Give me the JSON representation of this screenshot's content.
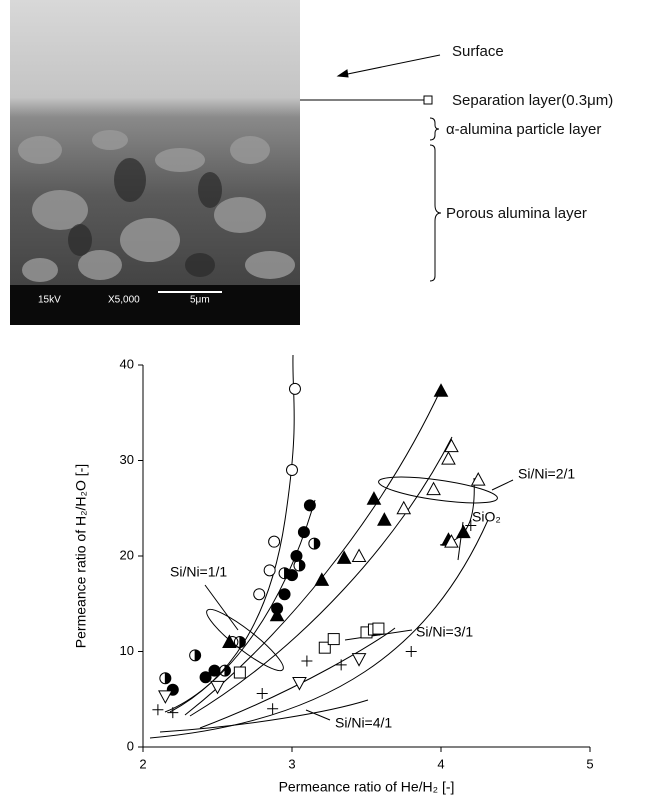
{
  "sem": {
    "labels": [
      "Surface",
      "Separation layer(0.3μm)",
      "α-alumina particle layer",
      "Porous alumina layer"
    ],
    "scale_info": [
      "15kV",
      "X5,000",
      "5μm"
    ]
  },
  "chart_data": {
    "type": "scatter",
    "x_label": "Permeance ratio of He/H₂ [-]",
    "y_label": "Permeance ratio of H₂/H₂O [-]",
    "xlim": [
      2,
      5
    ],
    "ylim": [
      0,
      40
    ],
    "xticks": [
      2,
      3,
      4,
      5
    ],
    "yticks": [
      0,
      10,
      20,
      30,
      40
    ],
    "color": "#000000",
    "annotations": [
      "Si/Ni=1/1",
      "Si/Ni=2/1",
      "SiO₂",
      "Si/Ni=3/1",
      "Si/Ni=4/1"
    ],
    "series": [
      {
        "marker": "circle-open",
        "x": [
          2.6,
          2.78,
          2.85,
          2.88,
          3.0,
          3.02
        ],
        "values": [
          11,
          16,
          18.5,
          21.5,
          29,
          37.5
        ]
      },
      {
        "marker": "circle-filled",
        "x": [
          2.2,
          2.42,
          2.48,
          2.9,
          2.95,
          3.0,
          3.03,
          3.08,
          3.12
        ],
        "values": [
          6,
          7.3,
          8,
          14.5,
          16,
          18,
          20,
          22.5,
          25.3
        ]
      },
      {
        "marker": "circle-half",
        "x": [
          2.15,
          2.35,
          2.55,
          2.65,
          2.95,
          3.05,
          3.15
        ],
        "values": [
          7.2,
          9.6,
          8,
          11,
          18.2,
          19,
          21.3
        ]
      },
      {
        "marker": "triangle-filled",
        "x": [
          2.58,
          2.9,
          3.2,
          3.35,
          3.55,
          3.62,
          4.05,
          4.15,
          4.0
        ],
        "values": [
          11,
          13.8,
          17.5,
          19.8,
          26,
          23.8,
          21.7,
          22.5,
          37.3
        ]
      },
      {
        "marker": "triangle-open",
        "x": [
          3.45,
          3.75,
          3.95,
          4.05,
          4.07,
          4.07,
          4.25
        ],
        "values": [
          20,
          25,
          27,
          30.2,
          31.5,
          21.5,
          28
        ]
      },
      {
        "marker": "square-open",
        "x": [
          2.65,
          3.22,
          3.28,
          3.5,
          3.55,
          3.58
        ],
        "values": [
          7.8,
          10.4,
          11.3,
          12,
          12.3,
          12.4
        ]
      },
      {
        "marker": "triangle-down-open",
        "x": [
          2.15,
          2.5,
          3.05,
          3.45
        ],
        "values": [
          5.3,
          6.3,
          6.7,
          9.2
        ]
      },
      {
        "marker": "plus",
        "x": [
          2.1,
          2.2,
          2.8,
          2.87,
          3.1,
          3.33,
          3.8,
          4.2
        ],
        "values": [
          3.9,
          3.6,
          5.6,
          4,
          9,
          8.6,
          10,
          23.2
        ]
      }
    ]
  }
}
